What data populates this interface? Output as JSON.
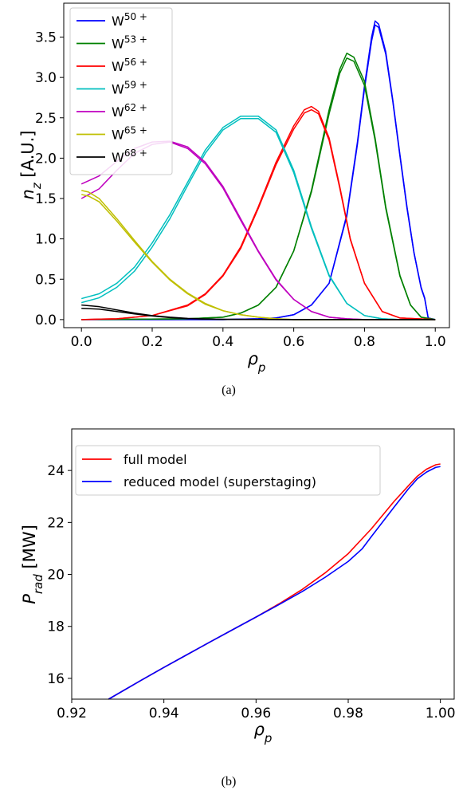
{
  "chart_data": [
    {
      "panel": "(a)",
      "type": "line",
      "xlabel": "ρp",
      "ylabel": "nz [A.U.]",
      "xlim": [
        -0.05,
        1.04
      ],
      "ylim": [
        -0.1,
        3.92
      ],
      "xticks": [
        "0.0",
        "0.2",
        "0.4",
        "0.6",
        "0.8",
        "1.0"
      ],
      "yticks": [
        "0.0",
        "0.5",
        "1.0",
        "1.5",
        "2.0",
        "2.5",
        "3.0",
        "3.5"
      ],
      "legend": "top-left",
      "series": [
        {
          "name": "W50+",
          "label_base": "W",
          "label_sup": "50 +",
          "color": "#0000ff",
          "curves": [
            {
              "x": [
                0,
                0.4,
                0.5,
                0.55,
                0.6,
                0.65,
                0.7,
                0.75,
                0.78,
                0.8,
                0.82,
                0.83,
                0.84,
                0.86,
                0.88,
                0.9,
                0.92,
                0.94,
                0.96,
                0.97,
                0.98,
                1.0
              ],
              "y": [
                0,
                0,
                0.01,
                0.02,
                0.06,
                0.18,
                0.45,
                1.3,
                2.2,
                2.9,
                3.5,
                3.7,
                3.66,
                3.32,
                2.72,
                2.05,
                1.4,
                0.83,
                0.4,
                0.27,
                0.02,
                0
              ]
            },
            {
              "x": [
                0,
                0.4,
                0.5,
                0.55,
                0.6,
                0.65,
                0.7,
                0.75,
                0.78,
                0.8,
                0.82,
                0.83,
                0.84,
                0.86,
                0.88,
                0.9,
                0.92,
                0.94,
                0.96,
                0.97,
                0.98,
                1.0
              ],
              "y": [
                0,
                0,
                0.01,
                0.02,
                0.06,
                0.18,
                0.45,
                1.28,
                2.17,
                2.86,
                3.45,
                3.65,
                3.62,
                3.29,
                2.7,
                2.03,
                1.38,
                0.82,
                0.39,
                0.26,
                0.02,
                0
              ]
            }
          ]
        },
        {
          "name": "W53+",
          "label_base": "W",
          "label_sup": "53 +",
          "color": "#008000",
          "curves": [
            {
              "x": [
                0,
                0.3,
                0.4,
                0.45,
                0.5,
                0.55,
                0.6,
                0.65,
                0.7,
                0.73,
                0.75,
                0.77,
                0.8,
                0.83,
                0.86,
                0.9,
                0.93,
                0.96,
                1.0
              ],
              "y": [
                0,
                0.01,
                0.03,
                0.08,
                0.18,
                0.4,
                0.85,
                1.6,
                2.6,
                3.1,
                3.3,
                3.25,
                2.95,
                2.25,
                1.4,
                0.55,
                0.18,
                0.03,
                0
              ]
            },
            {
              "x": [
                0,
                0.3,
                0.4,
                0.45,
                0.5,
                0.55,
                0.6,
                0.65,
                0.7,
                0.73,
                0.75,
                0.77,
                0.8,
                0.83,
                0.86,
                0.9,
                0.93,
                0.96,
                1.0
              ],
              "y": [
                0,
                0.01,
                0.03,
                0.08,
                0.18,
                0.4,
                0.85,
                1.58,
                2.55,
                3.05,
                3.24,
                3.2,
                2.9,
                2.22,
                1.38,
                0.54,
                0.18,
                0.03,
                0
              ]
            }
          ]
        },
        {
          "name": "W56+",
          "label_base": "W",
          "label_sup": "56 +",
          "color": "#ff0000",
          "curves": [
            {
              "x": [
                0,
                0.1,
                0.2,
                0.3,
                0.35,
                0.4,
                0.45,
                0.5,
                0.55,
                0.6,
                0.63,
                0.65,
                0.67,
                0.7,
                0.73,
                0.76,
                0.8,
                0.85,
                0.9,
                1.0
              ],
              "y": [
                0,
                0.01,
                0.05,
                0.18,
                0.32,
                0.55,
                0.9,
                1.4,
                1.95,
                2.4,
                2.6,
                2.64,
                2.58,
                2.25,
                1.65,
                1.0,
                0.45,
                0.1,
                0.02,
                0
              ]
            },
            {
              "x": [
                0,
                0.1,
                0.2,
                0.3,
                0.35,
                0.4,
                0.45,
                0.5,
                0.55,
                0.6,
                0.63,
                0.65,
                0.67,
                0.7,
                0.73,
                0.76,
                0.8,
                0.85,
                0.9,
                1.0
              ],
              "y": [
                0,
                0.01,
                0.05,
                0.17,
                0.31,
                0.54,
                0.88,
                1.38,
                1.92,
                2.36,
                2.56,
                2.6,
                2.55,
                2.22,
                1.63,
                0.99,
                0.45,
                0.1,
                0.02,
                0
              ]
            }
          ]
        },
        {
          "name": "W59+",
          "label_base": "W",
          "label_sup": "59 +",
          "color": "#00bfbf",
          "curves": [
            {
              "x": [
                0,
                0.05,
                0.1,
                0.15,
                0.2,
                0.25,
                0.3,
                0.35,
                0.4,
                0.45,
                0.5,
                0.55,
                0.6,
                0.65,
                0.7,
                0.75,
                0.8,
                0.85,
                0.9,
                1.0
              ],
              "y": [
                0.26,
                0.32,
                0.45,
                0.65,
                0.95,
                1.3,
                1.7,
                2.1,
                2.38,
                2.52,
                2.52,
                2.35,
                1.85,
                1.15,
                0.55,
                0.2,
                0.05,
                0.01,
                0,
                0
              ]
            },
            {
              "x": [
                0,
                0.05,
                0.1,
                0.15,
                0.2,
                0.25,
                0.3,
                0.35,
                0.4,
                0.45,
                0.5,
                0.55,
                0.6,
                0.65,
                0.7,
                0.75,
                0.8,
                0.85,
                0.9,
                1.0
              ],
              "y": [
                0.21,
                0.27,
                0.4,
                0.6,
                0.9,
                1.25,
                1.66,
                2.06,
                2.35,
                2.49,
                2.49,
                2.32,
                1.82,
                1.13,
                0.54,
                0.2,
                0.05,
                0.01,
                0,
                0
              ]
            }
          ]
        },
        {
          "name": "W62+",
          "label_base": "W",
          "label_sup": "62 +",
          "color": "#bf00bf",
          "curves": [
            {
              "x": [
                0,
                0.05,
                0.1,
                0.15,
                0.2,
                0.25,
                0.3,
                0.35,
                0.4,
                0.45,
                0.5,
                0.55,
                0.6,
                0.65,
                0.7,
                0.75,
                0.8,
                0.9,
                1.0
              ],
              "y": [
                1.68,
                1.78,
                1.96,
                2.12,
                2.2,
                2.21,
                2.14,
                1.95,
                1.65,
                1.25,
                0.85,
                0.5,
                0.25,
                0.1,
                0.03,
                0.01,
                0,
                0,
                0
              ]
            },
            {
              "x": [
                0,
                0.05,
                0.1,
                0.15,
                0.2,
                0.25,
                0.3,
                0.35,
                0.4,
                0.45,
                0.5,
                0.55,
                0.6,
                0.65,
                0.7,
                0.75,
                0.8,
                0.9,
                1.0
              ],
              "y": [
                1.5,
                1.62,
                1.85,
                2.06,
                2.17,
                2.2,
                2.12,
                1.93,
                1.63,
                1.23,
                0.84,
                0.49,
                0.25,
                0.1,
                0.03,
                0.01,
                0,
                0,
                0
              ]
            }
          ]
        },
        {
          "name": "W65+",
          "label_base": "W",
          "label_sup": "65 +",
          "color": "#bfbf00",
          "curves": [
            {
              "x": [
                0,
                0.02,
                0.05,
                0.1,
                0.15,
                0.2,
                0.25,
                0.3,
                0.35,
                0.4,
                0.45,
                0.5,
                0.55,
                0.6,
                0.7,
                0.8,
                1.0
              ],
              "y": [
                1.6,
                1.58,
                1.5,
                1.25,
                0.98,
                0.72,
                0.5,
                0.33,
                0.2,
                0.11,
                0.06,
                0.03,
                0.01,
                0,
                0,
                0,
                0
              ]
            },
            {
              "x": [
                0,
                0.02,
                0.05,
                0.1,
                0.15,
                0.2,
                0.25,
                0.3,
                0.35,
                0.4,
                0.45,
                0.5,
                0.55,
                0.6,
                0.7,
                0.8,
                1.0
              ],
              "y": [
                1.55,
                1.53,
                1.46,
                1.22,
                0.96,
                0.71,
                0.49,
                0.32,
                0.19,
                0.11,
                0.06,
                0.03,
                0.01,
                0,
                0,
                0,
                0
              ]
            }
          ]
        },
        {
          "name": "W68+",
          "label_base": "W",
          "label_sup": "68 +",
          "color": "#000000",
          "curves": [
            {
              "x": [
                0,
                0.05,
                0.1,
                0.15,
                0.2,
                0.25,
                0.3,
                0.35,
                0.4,
                0.5,
                0.6,
                0.8,
                1.0
              ],
              "y": [
                0.18,
                0.16,
                0.12,
                0.08,
                0.05,
                0.03,
                0.015,
                0.008,
                0.004,
                0.001,
                0,
                0,
                0
              ]
            },
            {
              "x": [
                0,
                0.05,
                0.1,
                0.15,
                0.2,
                0.25,
                0.3,
                0.35,
                0.4,
                0.5,
                0.6,
                0.8,
                1.0
              ],
              "y": [
                0.14,
                0.13,
                0.1,
                0.07,
                0.045,
                0.025,
                0.012,
                0.006,
                0.003,
                0.001,
                0,
                0,
                0
              ]
            }
          ]
        }
      ]
    },
    {
      "panel": "(b)",
      "type": "line",
      "xlabel": "ρp",
      "ylabel": "Prad [MW]",
      "xlim": [
        0.92,
        1.003
      ],
      "ylim": [
        15.2,
        25.6
      ],
      "xticks": [
        "0.92",
        "0.94",
        "0.96",
        "0.98",
        "1.00"
      ],
      "yticks": [
        "16",
        "18",
        "20",
        "22",
        "24"
      ],
      "legend": "top-left",
      "series": [
        {
          "name": "full model",
          "color": "#ff0000",
          "x": [
            0.928,
            0.935,
            0.94,
            0.945,
            0.95,
            0.955,
            0.96,
            0.965,
            0.97,
            0.975,
            0.98,
            0.985,
            0.99,
            0.993,
            0.995,
            0.997,
            0.999,
            1.0
          ],
          "y": [
            15.2,
            15.92,
            16.42,
            16.91,
            17.4,
            17.88,
            18.36,
            18.87,
            19.42,
            20.06,
            20.8,
            21.75,
            22.82,
            23.4,
            23.78,
            24.05,
            24.22,
            24.25
          ]
        },
        {
          "name": "reduced model (superstaging)",
          "color": "#0000ff",
          "x": [
            0.928,
            0.935,
            0.94,
            0.945,
            0.95,
            0.955,
            0.96,
            0.965,
            0.97,
            0.975,
            0.98,
            0.983,
            0.985,
            0.99,
            0.993,
            0.995,
            0.997,
            0.999,
            1.0
          ],
          "y": [
            15.2,
            15.92,
            16.42,
            16.91,
            17.4,
            17.88,
            18.36,
            18.84,
            19.34,
            19.89,
            20.5,
            20.98,
            21.45,
            22.6,
            23.28,
            23.68,
            23.94,
            24.12,
            24.15
          ]
        }
      ]
    }
  ],
  "captions": {
    "a": "(a)",
    "b": "(b)"
  }
}
